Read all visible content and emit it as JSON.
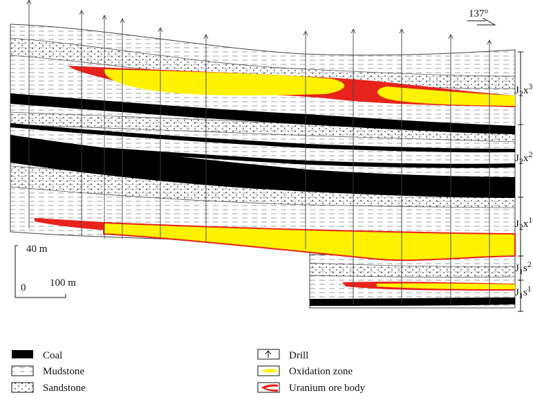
{
  "orientation": "137°",
  "scale": {
    "vertical": "40 m",
    "origin": "0",
    "horizontal": "100 m"
  },
  "strata": [
    {
      "letter": "J",
      "sub": "2",
      "name": "x",
      "sup": "3"
    },
    {
      "letter": "J",
      "sub": "2",
      "name": "x",
      "sup": "2"
    },
    {
      "letter": "J",
      "sub": "2",
      "name": "x",
      "sup": "1"
    },
    {
      "letter": "J",
      "sub": "1",
      "name": "s",
      "sup": "2"
    },
    {
      "letter": "J",
      "sub": "1",
      "name": "s",
      "sup": "1"
    }
  ],
  "legend": [
    "Coal",
    "Mudstone",
    "Sandstone",
    "Drill",
    "Oxidation zone",
    "Uranium ore body"
  ]
}
